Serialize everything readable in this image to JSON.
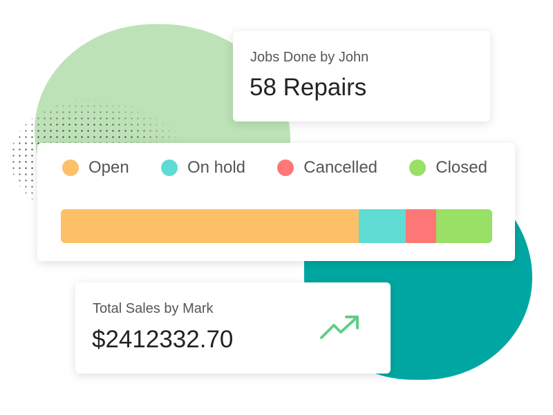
{
  "john_card": {
    "label": "Jobs Done by John",
    "value": "58 Repairs"
  },
  "status_card": {
    "legend": [
      {
        "label": "Open",
        "color": "#fdc069",
        "share": 69
      },
      {
        "label": "On hold",
        "color": "#5edcd3",
        "share": 11
      },
      {
        "label": "Cancelled",
        "color": "#fe7777",
        "share": 7
      },
      {
        "label": "Closed",
        "color": "#99e066",
        "share": 13
      }
    ]
  },
  "sales_card": {
    "label": "Total Sales by Mark",
    "value": "$2412332.70",
    "trend_icon": "trending-up-icon",
    "trend_color": "#62cd86"
  },
  "colors": {
    "green_blob": "#bde2b7",
    "teal_blob": "#00a7a2"
  }
}
